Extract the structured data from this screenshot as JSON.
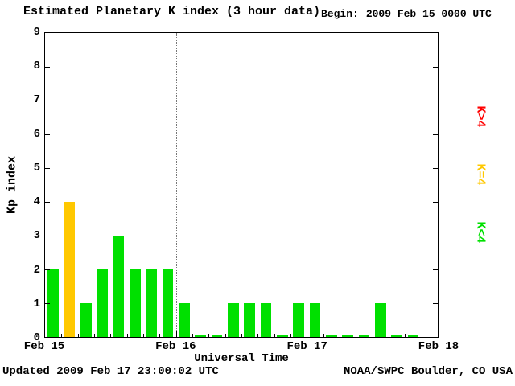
{
  "title": "Estimated Planetary K index (3 hour data)",
  "begin": {
    "label": "Begin:",
    "value": "2009 Feb 15 0000 UTC"
  },
  "footer": {
    "updated": "Updated 2009 Feb 17 23:00:02 UTC",
    "source": "NOAA/SWPC Boulder, CO USA"
  },
  "chart_data": {
    "type": "bar",
    "title": "Estimated Planetary K index (3 hour data)",
    "xlabel": "Universal Time",
    "ylabel": "Kp index",
    "ylim": [
      0,
      9
    ],
    "y_ticks": [
      0,
      1,
      2,
      3,
      4,
      5,
      6,
      7,
      8,
      9
    ],
    "x_ticks": [
      "Feb 15",
      "Feb 16",
      "Feb 17",
      "Feb 18"
    ],
    "days": 3,
    "slots_per_day": 8,
    "hours_per_bar": 3,
    "values": [
      2,
      4,
      1,
      2,
      3,
      2,
      2,
      2,
      1,
      0,
      0,
      1,
      1,
      1,
      0,
      1,
      1,
      0,
      0,
      0,
      1,
      0,
      0
    ],
    "colors": {
      "k_lt_4": "#00e000",
      "k_eq_4": "#ffc800",
      "k_gt_4": "#ff0000"
    },
    "legend": [
      {
        "label": "K>4",
        "color": "#ff0000"
      },
      {
        "label": "K=4",
        "color": "#ffc800"
      },
      {
        "label": "K<4",
        "color": "#00e000"
      }
    ],
    "grid": "dotted vertical lines at day boundaries",
    "legend_position": "right, rotated"
  }
}
